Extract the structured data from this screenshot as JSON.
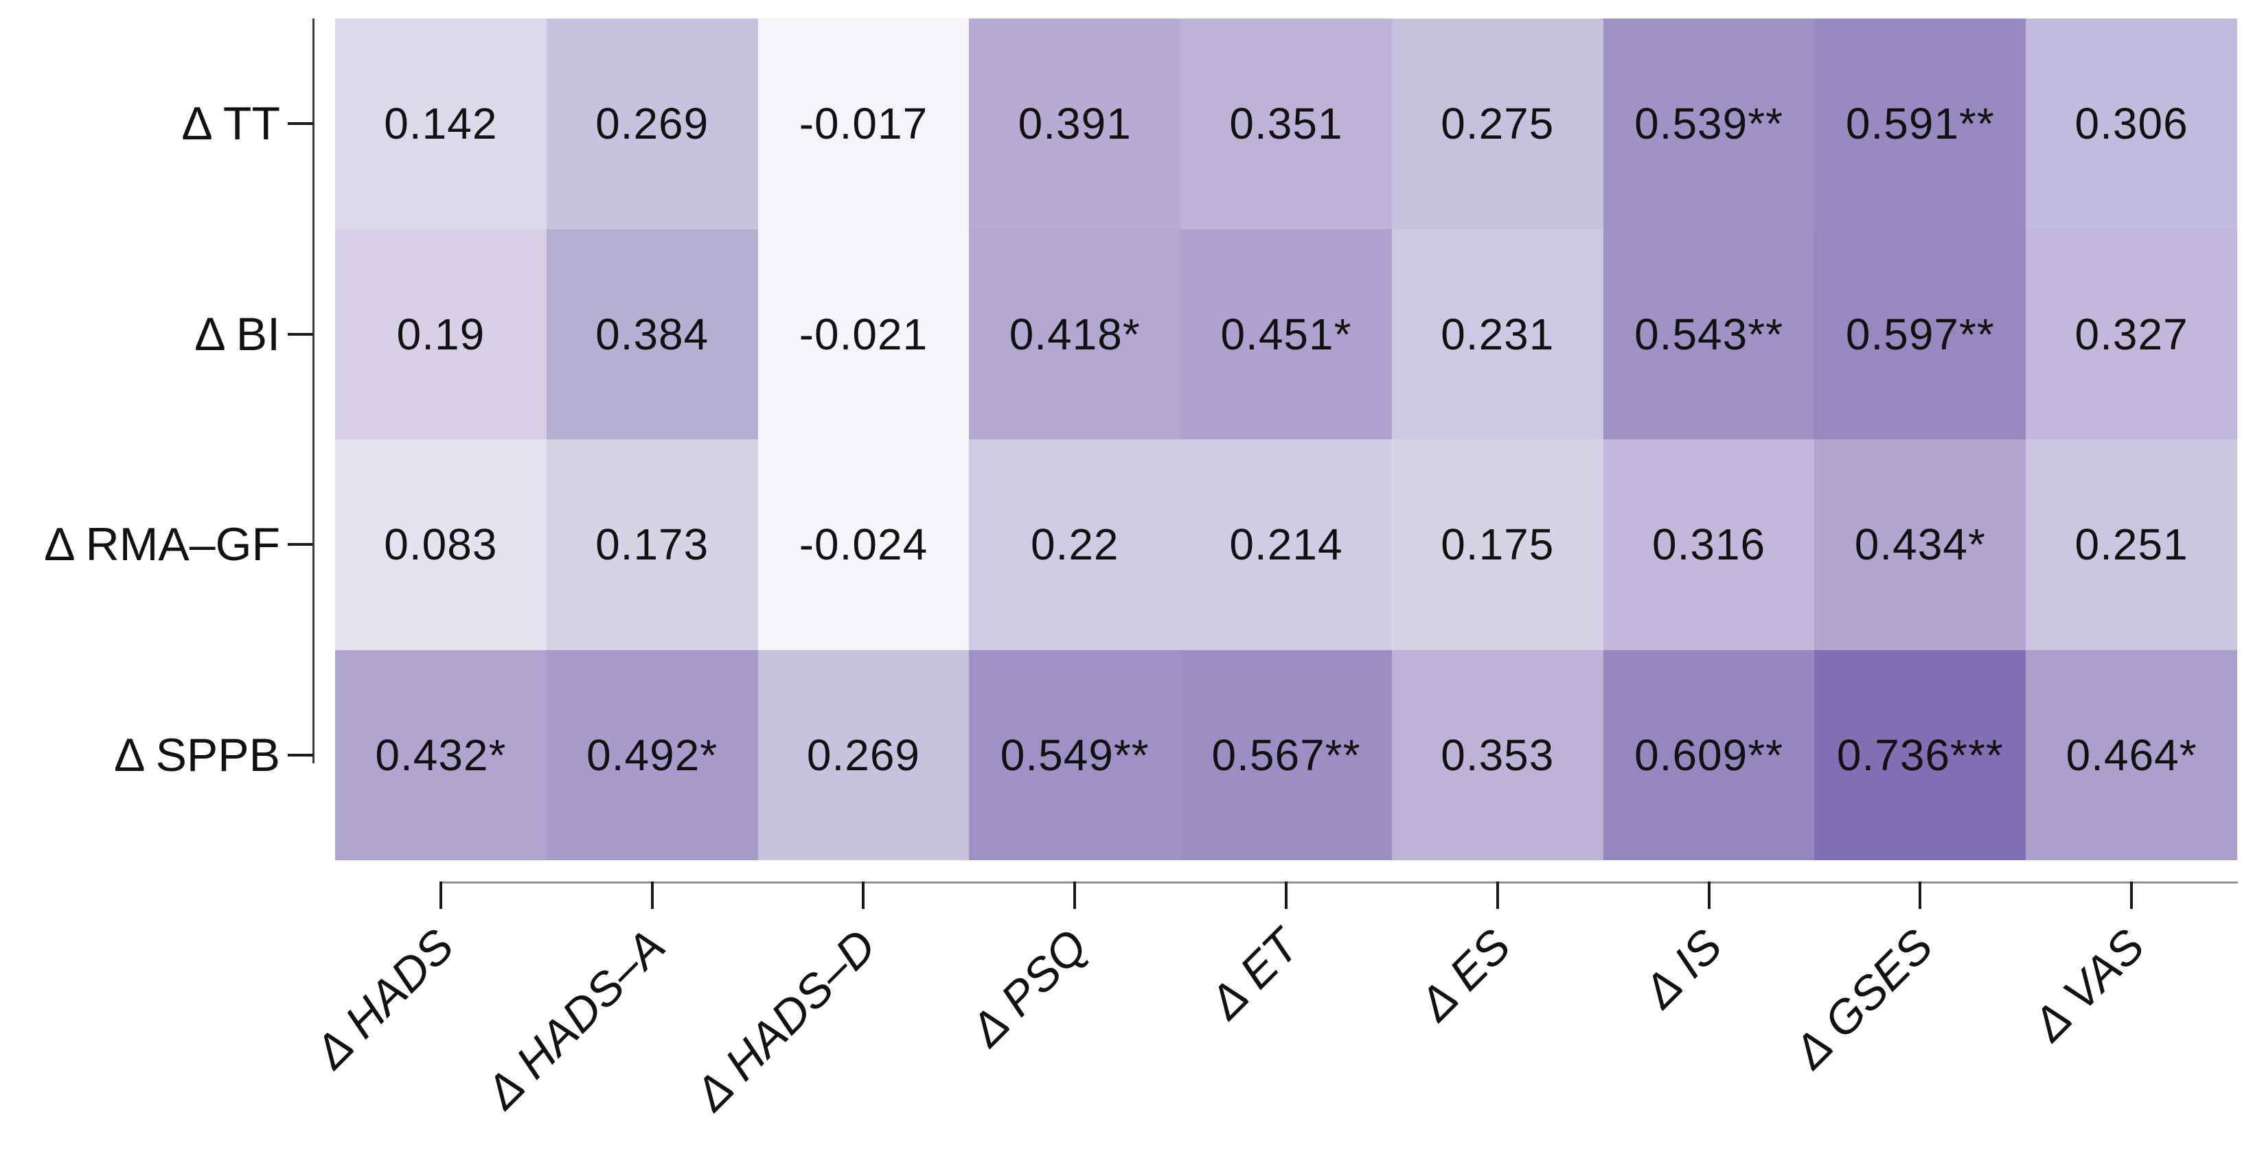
{
  "chart_data": {
    "type": "heatmap",
    "title": "",
    "xlabel": "",
    "ylabel": "",
    "rows": [
      "Δ TT",
      "Δ BI",
      "Δ RMA–GF",
      "Δ SPPB"
    ],
    "columns": [
      "Δ HADS",
      "Δ HADS–A",
      "Δ HADS–D",
      "Δ PSQ",
      "Δ ET",
      "Δ ES",
      "Δ IS",
      "Δ GSES",
      "Δ VAS"
    ],
    "values": [
      [
        0.142,
        0.269,
        -0.017,
        0.391,
        0.351,
        0.275,
        0.539,
        0.591,
        0.306
      ],
      [
        0.19,
        0.384,
        -0.021,
        0.418,
        0.451,
        0.231,
        0.543,
        0.597,
        0.327
      ],
      [
        0.083,
        0.173,
        -0.024,
        0.22,
        0.214,
        0.175,
        0.316,
        0.434,
        0.251
      ],
      [
        0.432,
        0.492,
        0.269,
        0.549,
        0.567,
        0.353,
        0.609,
        0.736,
        0.464
      ]
    ],
    "cell_labels": [
      [
        "0.142",
        "0.269",
        "-0.017",
        "0.391",
        "0.351",
        "0.275",
        "0.539**",
        "0.591**",
        "0.306"
      ],
      [
        "0.19",
        "0.384",
        "-0.021",
        "0.418*",
        "0.451*",
        "0.231",
        "0.543**",
        "0.597**",
        "0.327"
      ],
      [
        "0.083",
        "0.173",
        "-0.024",
        "0.22",
        "0.214",
        "0.175",
        "0.316",
        "0.434*",
        "0.251"
      ],
      [
        "0.432*",
        "0.492*",
        "0.269",
        "0.549**",
        "0.567**",
        "0.353",
        "0.609**",
        "0.736***",
        "0.464*"
      ]
    ],
    "colorscale": {
      "type": "linear",
      "vmin": -0.05,
      "vmax": 0.75,
      "min_color": "#fbf9fc",
      "max_color": "#7e6eb2"
    },
    "grid": false,
    "legend": "none"
  },
  "colors": {
    "background": "#ffffff",
    "value_text": "#111111",
    "axis_text": "#111111",
    "y_axis_line": "#3c3c3c",
    "x_axis_line": "#8f8f8f",
    "tick": "#1a1a1a"
  }
}
